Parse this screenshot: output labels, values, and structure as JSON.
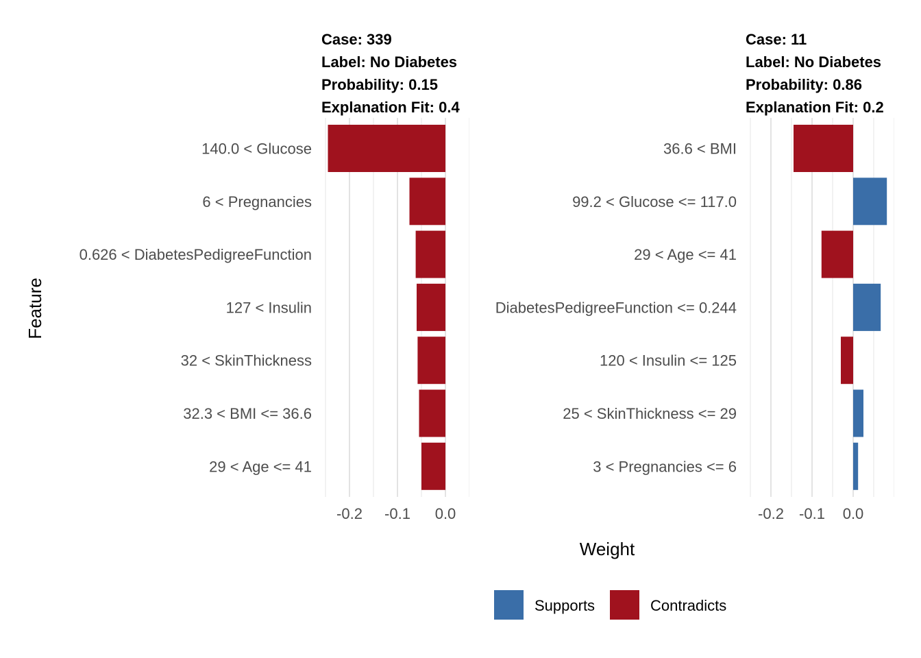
{
  "chart_data": {
    "type": "bar",
    "orientation": "horizontal",
    "xlabel": "Weight",
    "ylabel": "Feature",
    "colors": {
      "Supports": "#3a6ea8",
      "Contradicts": "#a0121e"
    },
    "legend": {
      "position": "bottom",
      "entries": [
        "Supports",
        "Contradicts"
      ]
    },
    "panels": [
      {
        "case_label": "Case: 339",
        "label_label": "Label: No Diabetes",
        "probability_label": "Probability: 0.15",
        "fit_label": "Explanation Fit: 0.4",
        "xlim": [
          -0.25,
          0.05
        ],
        "ticks": [
          -0.2,
          -0.1,
          0.0
        ],
        "tick_labels": [
          "-0.2",
          "-0.1",
          "0.0"
        ],
        "features": [
          {
            "label": "140.0 < Glucose",
            "weight": -0.245,
            "type": "Contradicts"
          },
          {
            "label": "6 < Pregnancies",
            "weight": -0.075,
            "type": "Contradicts"
          },
          {
            "label": "0.626 < DiabetesPedigreeFunction",
            "weight": -0.062,
            "type": "Contradicts"
          },
          {
            "label": "127 < Insulin",
            "weight": -0.06,
            "type": "Contradicts"
          },
          {
            "label": "32 < SkinThickness",
            "weight": -0.058,
            "type": "Contradicts"
          },
          {
            "label": "32.3 < BMI <= 36.6",
            "weight": -0.055,
            "type": "Contradicts"
          },
          {
            "label": "29 < Age <= 41",
            "weight": -0.05,
            "type": "Contradicts"
          }
        ]
      },
      {
        "case_label": "Case: 11",
        "label_label": "Label: No Diabetes",
        "probability_label": "Probability: 0.86",
        "fit_label": "Explanation Fit: 0.2",
        "xlim": [
          -0.25,
          0.1
        ],
        "ticks": [
          -0.2,
          -0.1,
          0.0
        ],
        "tick_labels": [
          "-0.2",
          "-0.1",
          "0.0"
        ],
        "features": [
          {
            "label": "36.6 < BMI",
            "weight": -0.145,
            "type": "Contradicts"
          },
          {
            "label": "99.2 < Glucose <= 117.0",
            "weight": 0.082,
            "type": "Supports"
          },
          {
            "label": "29 < Age <= 41",
            "weight": -0.077,
            "type": "Contradicts"
          },
          {
            "label": "DiabetesPedigreeFunction <= 0.244",
            "weight": 0.067,
            "type": "Supports"
          },
          {
            "label": "120 < Insulin <= 125",
            "weight": -0.03,
            "type": "Contradicts"
          },
          {
            "label": "25 < SkinThickness <= 29",
            "weight": 0.025,
            "type": "Supports"
          },
          {
            "label": "3 < Pregnancies <= 6",
            "weight": 0.012,
            "type": "Supports"
          }
        ]
      }
    ]
  }
}
